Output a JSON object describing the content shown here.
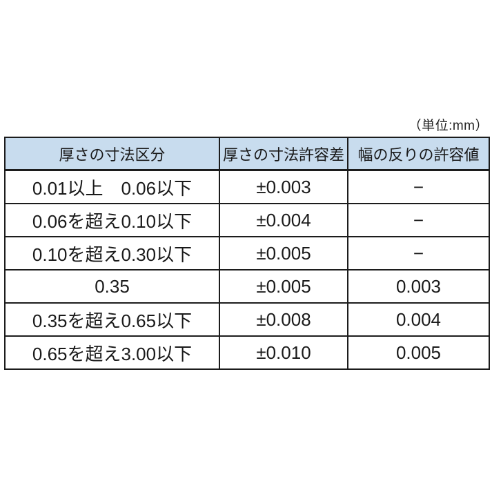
{
  "unit_label": "（単位:mm）",
  "table": {
    "headers": [
      "厚さの寸法区分",
      "厚さの寸法許容差",
      "幅の反りの許容値"
    ],
    "rows": [
      [
        "0.01以上　0.06以下",
        "±0.003",
        "−"
      ],
      [
        "0.06を超え0.10以下",
        "±0.004",
        "−"
      ],
      [
        "0.10を超え0.30以下",
        "±0.005",
        "−"
      ],
      [
        "0.35",
        "±0.005",
        "0.003"
      ],
      [
        "0.35を超え0.65以下",
        "±0.008",
        "0.004"
      ],
      [
        "0.65を超え3.00以下",
        "±0.010",
        "0.005"
      ]
    ]
  },
  "colors": {
    "header_bg": "#c8dcee",
    "border": "#1c1c1c",
    "background": "#ffffff"
  }
}
